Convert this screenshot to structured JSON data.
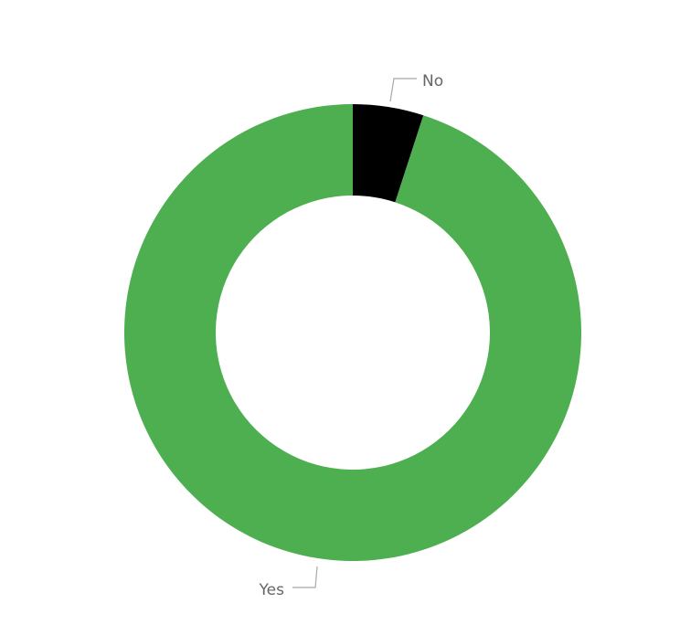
{
  "chart_data": {
    "type": "pie",
    "donut": true,
    "legend": "none",
    "categories": [
      "No",
      "Yes"
    ],
    "values": [
      5,
      95
    ],
    "colors": [
      "#000000",
      "#4daf4f"
    ],
    "label_color": "#666666",
    "leader_color": "#a8a8a8",
    "background": "#ffffff"
  }
}
